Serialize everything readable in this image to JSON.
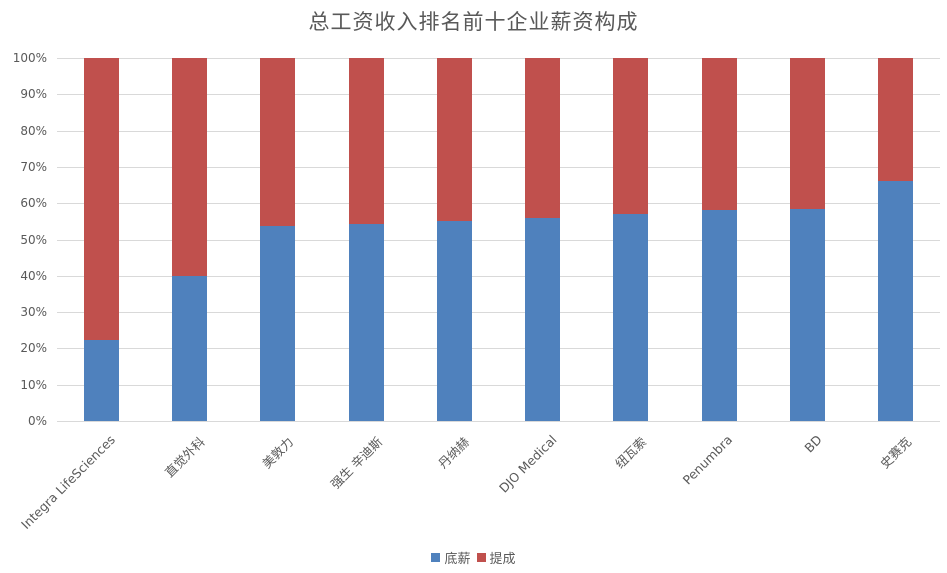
{
  "chart_data": {
    "type": "bar",
    "stacked": "percent",
    "title": "总工资收入排名前十企业薪资构成",
    "xlabel": "",
    "ylabel": "",
    "ylim": [
      0,
      100
    ],
    "yticks": [
      "0%",
      "10%",
      "20%",
      "30%",
      "40%",
      "50%",
      "60%",
      "70%",
      "80%",
      "90%",
      "100%"
    ],
    "grid": true,
    "legend_position": "bottom",
    "categories": [
      "Integra LifeSciences",
      "直觉外科",
      "美敦力",
      "强生 辛迪斯",
      "丹纳赫",
      "DJO Medical",
      "纽瓦索",
      "Penumbra",
      "BD",
      "史赛克"
    ],
    "series": [
      {
        "name": "底薪",
        "color": "#4f81bd",
        "values": [
          22.3,
          40.0,
          53.7,
          54.3,
          55.1,
          56.0,
          57.0,
          58.1,
          58.4,
          66.1
        ]
      },
      {
        "name": "提成",
        "color": "#c0504d",
        "values": [
          77.7,
          60.0,
          46.3,
          45.7,
          44.9,
          44.0,
          43.0,
          41.9,
          41.6,
          33.9
        ]
      }
    ]
  }
}
